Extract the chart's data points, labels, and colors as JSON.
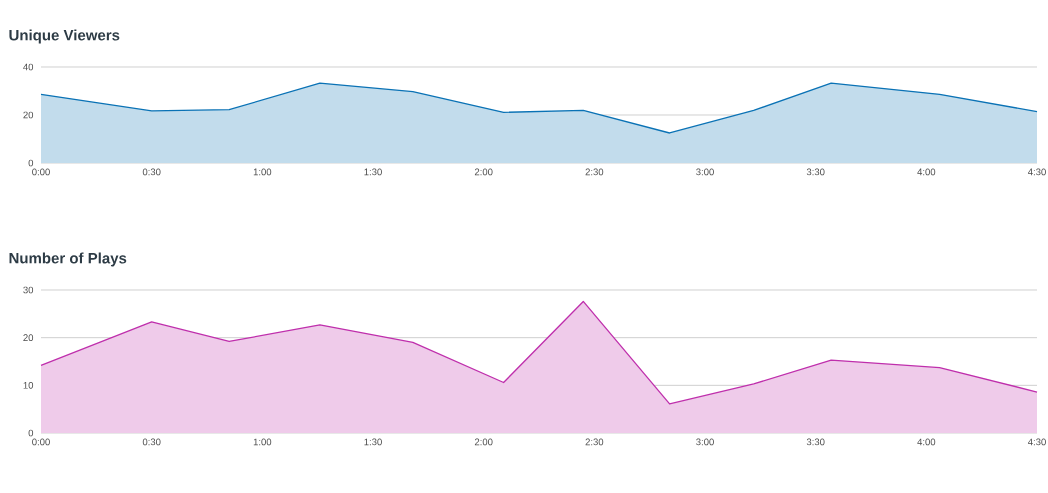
{
  "chart_data": [
    {
      "type": "area",
      "title": "Unique Viewers",
      "x": [
        0,
        0.5,
        0.85,
        1.26,
        1.68,
        2.09,
        2.45,
        2.84,
        3.22,
        3.57,
        4.06,
        4.5
      ],
      "series": [
        {
          "color": "#0a72b5",
          "values": [
            28.6,
            21.7,
            22.2,
            33.3,
            29.7,
            21.1,
            21.9,
            12.5,
            21.9,
            33.3,
            28.6,
            21.4
          ]
        }
      ],
      "xlim": [
        0,
        4.5
      ],
      "xticks": [
        {
          "value": 0,
          "label": "0:00"
        },
        {
          "value": 0.5,
          "label": "0:30"
        },
        {
          "value": 1,
          "label": "1:00"
        },
        {
          "value": 1.5,
          "label": "1:30"
        },
        {
          "value": 2,
          "label": "2:00"
        },
        {
          "value": 2.5,
          "label": "2:30"
        },
        {
          "value": 3,
          "label": "3:00"
        },
        {
          "value": 3.5,
          "label": "3:30"
        },
        {
          "value": 4,
          "label": "4:00"
        },
        {
          "value": 4.5,
          "label": "4:30"
        }
      ],
      "ylim": [
        0,
        40
      ],
      "yticks": [
        0,
        20,
        40
      ],
      "grid": "y",
      "marker": "none"
    },
    {
      "type": "area",
      "title": "Number of Plays",
      "x": [
        0,
        0.5,
        0.85,
        1.26,
        1.68,
        2.09,
        2.45,
        2.84,
        3.22,
        3.57,
        4.06,
        4.5
      ],
      "series": [
        {
          "color": "#bf2fac",
          "values": [
            14.2,
            23.3,
            19.2,
            22.7,
            19.0,
            10.6,
            27.6,
            6.1,
            10.3,
            15.3,
            13.7,
            8.6
          ]
        }
      ],
      "xlim": [
        0,
        4.5
      ],
      "xticks": [
        {
          "value": 0,
          "label": "0:00"
        },
        {
          "value": 0.5,
          "label": "0:30"
        },
        {
          "value": 1,
          "label": "1:00"
        },
        {
          "value": 1.5,
          "label": "1:30"
        },
        {
          "value": 2,
          "label": "2:00"
        },
        {
          "value": 2.5,
          "label": "2:30"
        },
        {
          "value": 3,
          "label": "3:00"
        },
        {
          "value": 3.5,
          "label": "3:30"
        },
        {
          "value": 4,
          "label": "4:00"
        },
        {
          "value": 4.5,
          "label": "4:30"
        }
      ],
      "ylim": [
        0,
        30
      ],
      "yticks": [
        0,
        10,
        20,
        30
      ],
      "grid": "y",
      "marker": "none"
    }
  ]
}
